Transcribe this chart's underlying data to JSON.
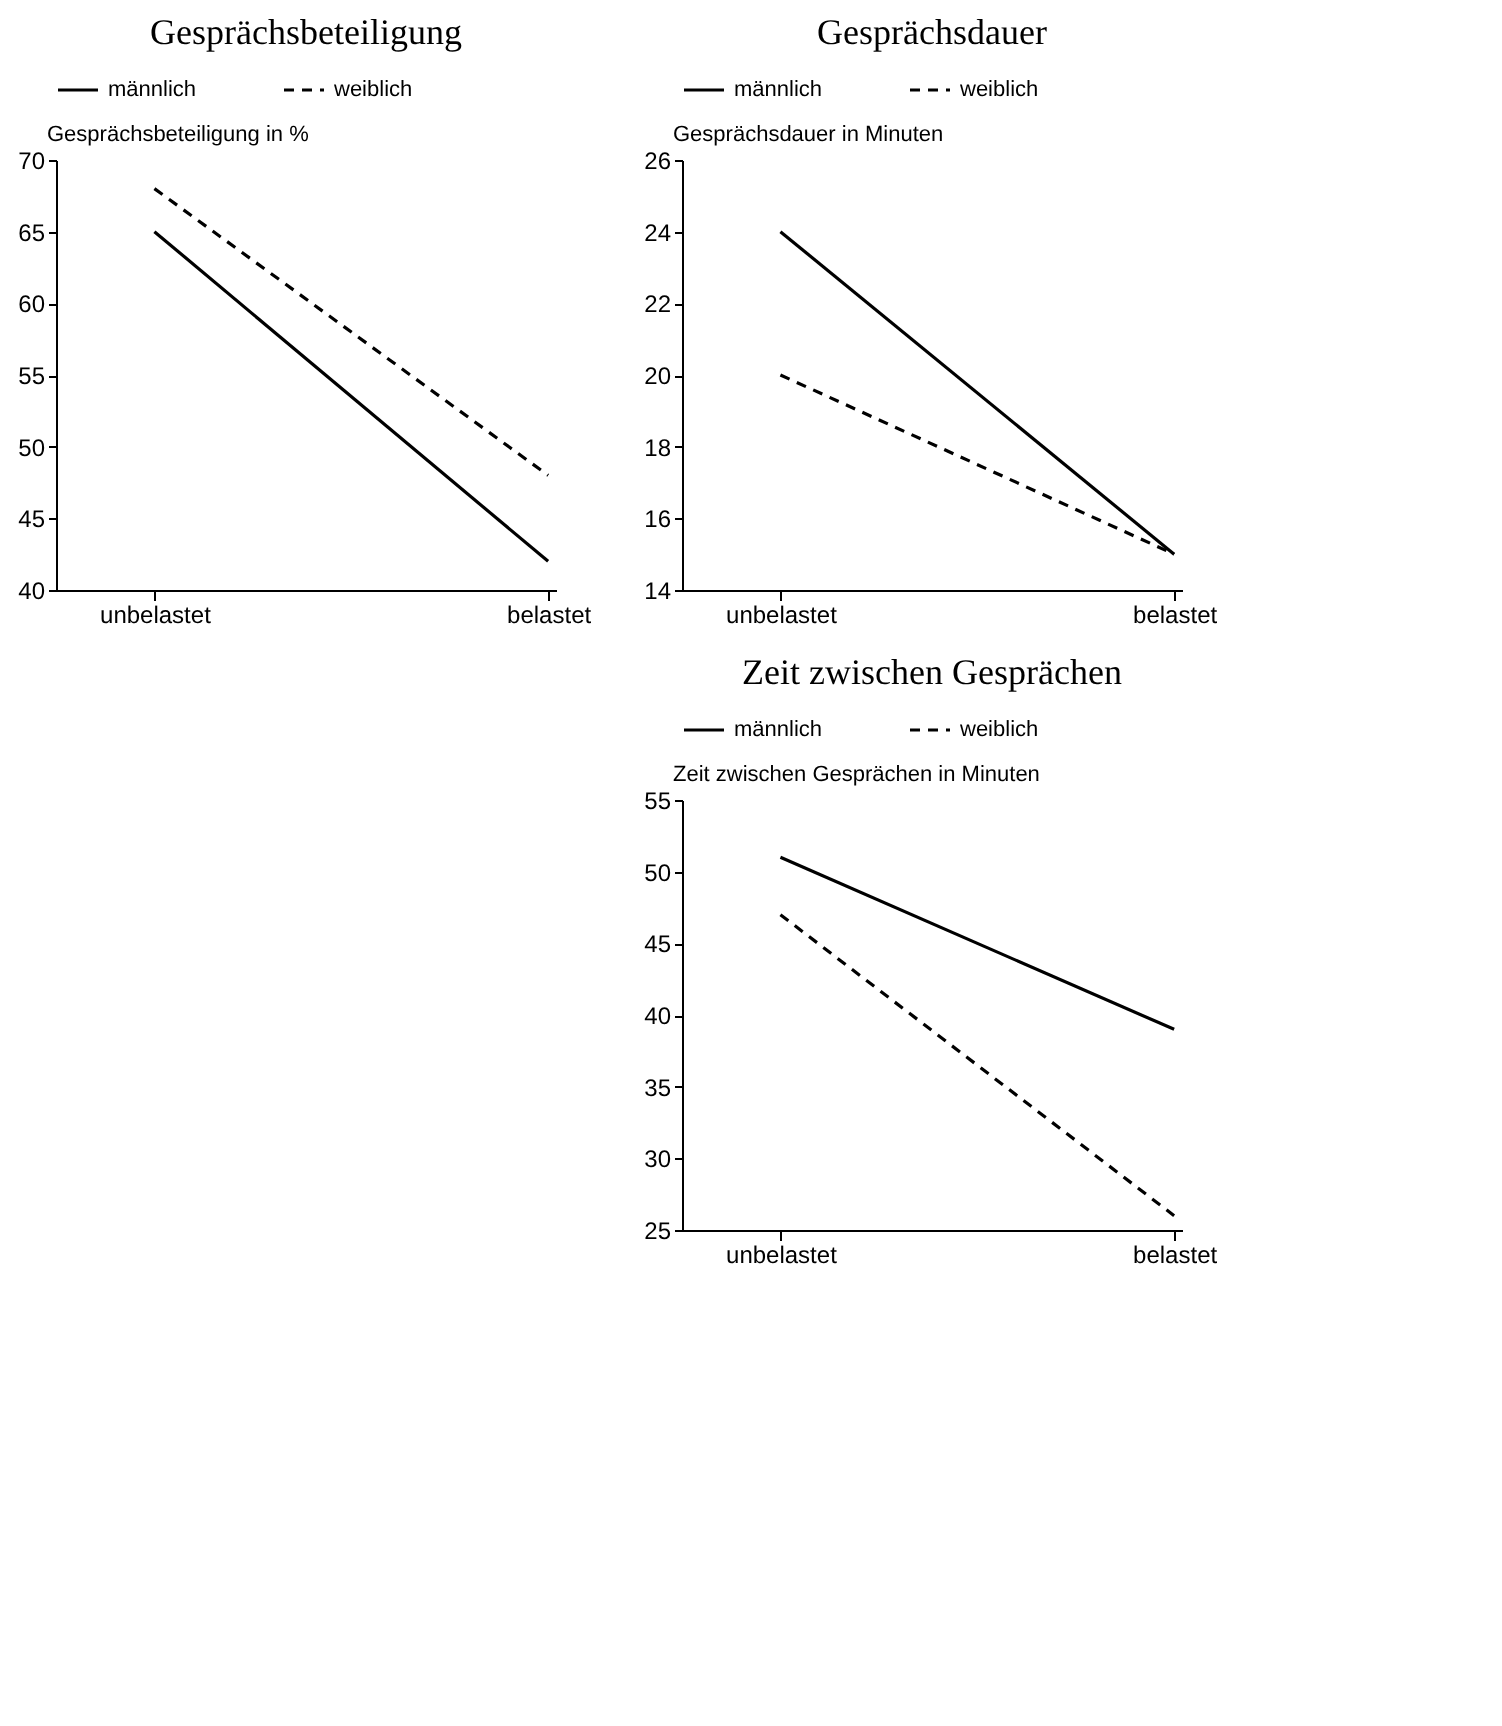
{
  "chart_data": [
    {
      "type": "line",
      "title": "Gesprächsbeteiligung",
      "ylabel": "Gesprächsbeteiligung in %",
      "categories": [
        "unbelastet",
        "belastet"
      ],
      "ylim": [
        40,
        70
      ],
      "yticks": [
        40,
        45,
        50,
        55,
        60,
        65,
        70
      ],
      "grid": false,
      "legend": "top",
      "series": [
        {
          "name": "männlich",
          "color": "#000000",
          "line_style": "solid",
          "values": [
            65,
            42
          ]
        },
        {
          "name": "weiblich",
          "color": "#000000",
          "line_style": "dashed",
          "values": [
            68,
            48
          ]
        }
      ]
    },
    {
      "type": "line",
      "title": "Gesprächsdauer",
      "ylabel": "Gesprächsdauer in Minuten",
      "categories": [
        "unbelastet",
        "belastet"
      ],
      "ylim": [
        14,
        26
      ],
      "yticks": [
        14,
        16,
        18,
        20,
        22,
        24,
        26
      ],
      "grid": false,
      "legend": "top",
      "series": [
        {
          "name": "männlich",
          "color": "#000000",
          "line_style": "solid",
          "values": [
            24,
            15
          ]
        },
        {
          "name": "weiblich",
          "color": "#000000",
          "line_style": "dashed",
          "values": [
            20,
            15
          ]
        }
      ]
    },
    {
      "type": "line",
      "title": "Zeit zwischen Gesprächen",
      "ylabel": "Zeit zwischen Gesprächen in Minuten",
      "categories": [
        "unbelastet",
        "belastet"
      ],
      "ylim": [
        25,
        55
      ],
      "yticks": [
        25,
        30,
        35,
        40,
        45,
        50,
        55
      ],
      "grid": false,
      "legend": "top",
      "series": [
        {
          "name": "männlich",
          "color": "#000000",
          "line_style": "solid",
          "values": [
            51,
            39
          ]
        },
        {
          "name": "weiblich",
          "color": "#000000",
          "line_style": "dashed",
          "values": [
            47,
            26
          ]
        }
      ]
    }
  ]
}
